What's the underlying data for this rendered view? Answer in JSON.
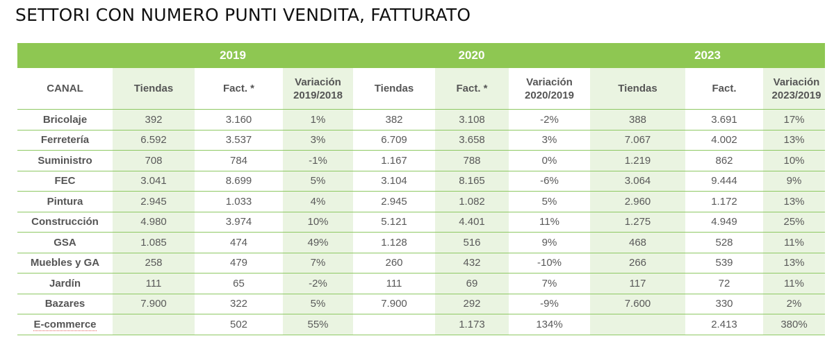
{
  "title": "SETTORI CON NUMERO PUNTI VENDITA, FATTURATO",
  "colors": {
    "header_green": "#8ec752",
    "shaded_column": "#eaf4e1",
    "row_rule": "#8ec863"
  },
  "years": [
    "2019",
    "2020",
    "2023"
  ],
  "columns": {
    "canal": "CANAL",
    "g2019": [
      "Tiendas",
      "Fact. *",
      "Variación 2019/2018"
    ],
    "g2020": [
      "Tiendas",
      "Fact. *",
      "Variación 2020/2019"
    ],
    "g2023": [
      "Tiendas",
      "Fact.",
      "Variación 2023/2019"
    ]
  },
  "rows": [
    {
      "canal": "Bricolaje",
      "c": [
        "392",
        "3.160",
        "1%",
        "382",
        "3.108",
        "-2%",
        "388",
        "3.691",
        "17%"
      ]
    },
    {
      "canal": "Ferretería",
      "c": [
        "6.592",
        "3.537",
        "3%",
        "6.709",
        "3.658",
        "3%",
        "7.067",
        "4.002",
        "13%"
      ]
    },
    {
      "canal": "Suministro",
      "c": [
        "708",
        "784",
        "-1%",
        "1.167",
        "788",
        "0%",
        "1.219",
        "862",
        "10%"
      ]
    },
    {
      "canal": "FEC",
      "c": [
        "3.041",
        "8.699",
        "5%",
        "3.104",
        "8.165",
        "-6%",
        "3.064",
        "9.444",
        "9%"
      ]
    },
    {
      "canal": "Pintura",
      "c": [
        "2.945",
        "1.033",
        "4%",
        "2.945",
        "1.082",
        "5%",
        "2.960",
        "1.172",
        "13%"
      ]
    },
    {
      "canal": "Construcción",
      "c": [
        "4.980",
        "3.974",
        "10%",
        "5.121",
        "4.401",
        "11%",
        "1.275",
        "4.949",
        "25%"
      ]
    },
    {
      "canal": "GSA",
      "c": [
        "1.085",
        "474",
        "49%",
        "1.128",
        "516",
        "9%",
        "468",
        "528",
        "11%"
      ]
    },
    {
      "canal": "Muebles y GA",
      "c": [
        "258",
        "479",
        "7%",
        "260",
        "432",
        "-10%",
        "266",
        "539",
        "13%"
      ]
    },
    {
      "canal": "Jardín",
      "c": [
        "111",
        "65",
        "-2%",
        "111",
        "69",
        "7%",
        "117",
        "72",
        "11%"
      ]
    },
    {
      "canal": "Bazares",
      "c": [
        "7.900",
        "322",
        "5%",
        "7.900",
        "292",
        "-9%",
        "7.600",
        "330",
        "2%"
      ]
    },
    {
      "canal": "E-commerce",
      "c": [
        "",
        "502",
        "55%",
        "",
        "1.173",
        "134%",
        "",
        "2.413",
        "380%"
      ]
    }
  ]
}
